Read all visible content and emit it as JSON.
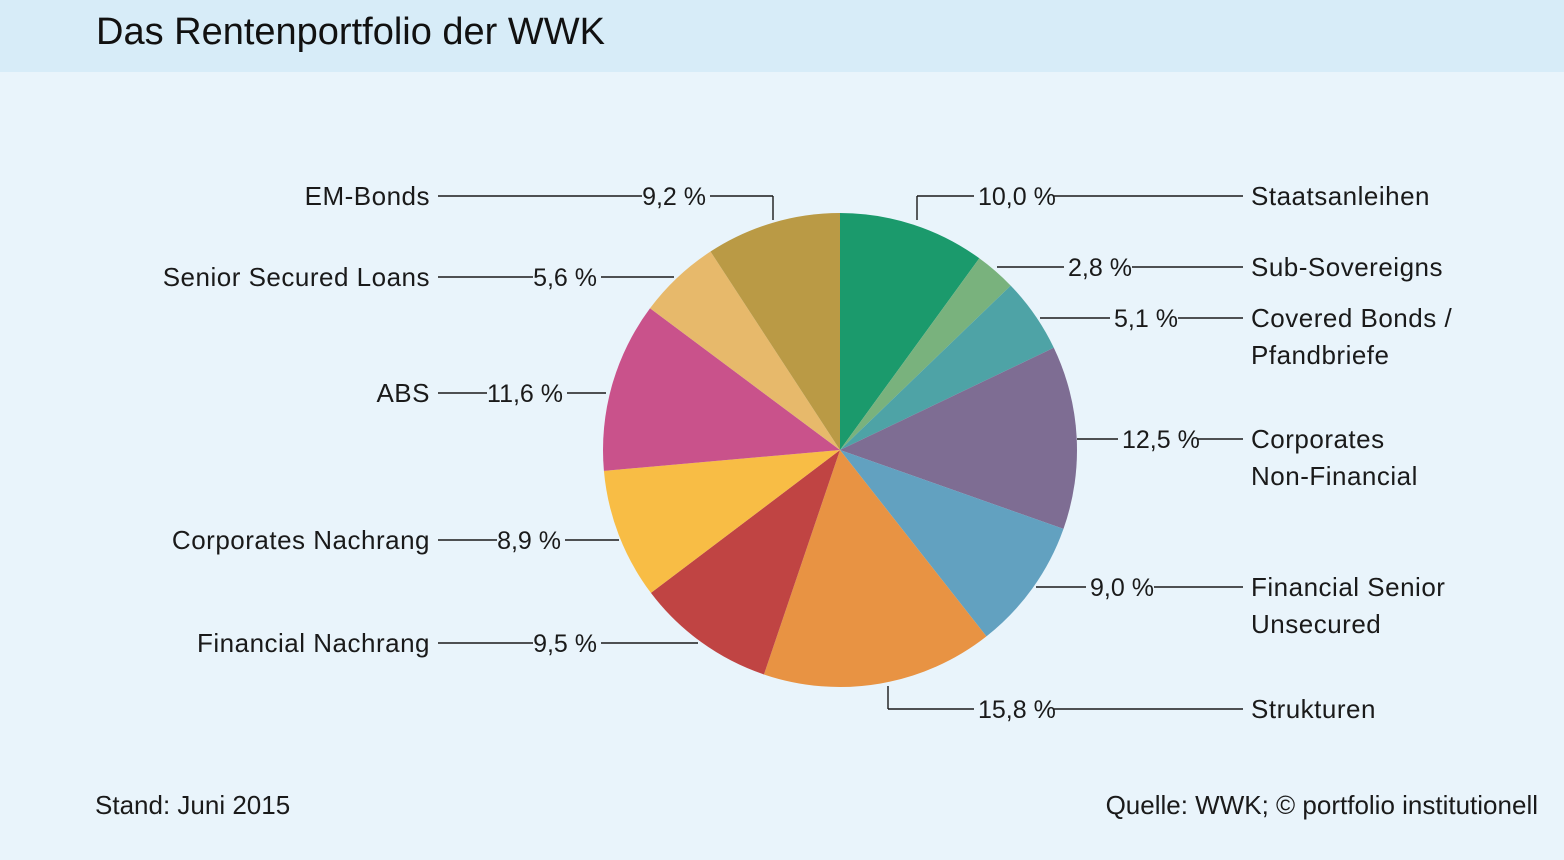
{
  "header": {
    "title": "Das Rentenportfolio der WWK"
  },
  "footer": {
    "stand": "Stand: Juni 2015",
    "source": "Quelle: WWK; © portfolio institutionell"
  },
  "chart_data": {
    "type": "pie",
    "title": "Das Rentenportfolio der WWK",
    "unit": "%",
    "start": "12 o'clock",
    "direction": "clockwise",
    "slices": [
      {
        "label": [
          "Staatsanleihen"
        ],
        "value": 10.0,
        "display": "10,0 %",
        "color": "#1b9a6c",
        "side": "right"
      },
      {
        "label": [
          "Sub-Sovereigns"
        ],
        "value": 2.8,
        "display": "2,8 %",
        "color": "#79b27d",
        "side": "right"
      },
      {
        "label": [
          "Covered Bonds /",
          "Pfandbriefe"
        ],
        "value": 5.1,
        "display": "5,1 %",
        "color": "#4ea3a6",
        "side": "right"
      },
      {
        "label": [
          "Corporates",
          "Non-Financial"
        ],
        "value": 12.5,
        "display": "12,5 %",
        "color": "#7e6d93",
        "side": "right"
      },
      {
        "label": [
          "Financial Senior",
          "Unsecured"
        ],
        "value": 9.0,
        "display": "9,0 %",
        "color": "#62a1c0",
        "side": "right"
      },
      {
        "label": [
          "Strukturen"
        ],
        "value": 15.8,
        "display": "15,8 %",
        "color": "#e89343",
        "side": "right"
      },
      {
        "label": [
          "Financial Nachrang"
        ],
        "value": 9.5,
        "display": "9,5 %",
        "color": "#c04443",
        "side": "left"
      },
      {
        "label": [
          "Corporates Nachrang"
        ],
        "value": 8.9,
        "display": "8,9 %",
        "color": "#f8bd45",
        "side": "left"
      },
      {
        "label": [
          "ABS"
        ],
        "value": 11.6,
        "display": "11,6 %",
        "color": "#c9528b",
        "side": "left"
      },
      {
        "label": [
          "Senior Secured Loans"
        ],
        "value": 5.6,
        "display": "5,6 %",
        "color": "#e7b96b",
        "side": "left"
      },
      {
        "label": [
          "EM-Bonds"
        ],
        "value": 9.2,
        "display": "9,2 %",
        "color": "#ba9a45",
        "side": "left"
      }
    ]
  }
}
